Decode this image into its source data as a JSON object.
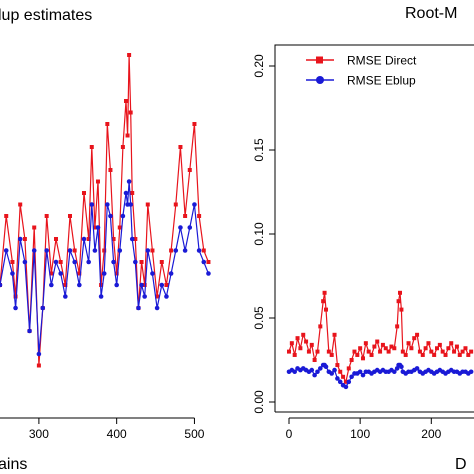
{
  "colors": {
    "direct": "#e8141c",
    "eblup": "#1a1ad6",
    "axis": "#000000",
    "background": "#ffffff"
  },
  "chart_data": [
    {
      "type": "line",
      "title": "lup estimates",
      "xlabel": "ains",
      "ylabel": "",
      "x_ticks": [
        300,
        400,
        500
      ],
      "xlim": [
        250,
        520
      ],
      "ylim": [
        0.0,
        0.3
      ],
      "series": [
        {
          "name": "Direct",
          "color": "#e8141c",
          "marker": "square",
          "x": [
            250,
            258,
            266,
            270,
            276,
            282,
            288,
            294,
            300,
            305,
            310,
            316,
            322,
            328,
            334,
            340,
            346,
            352,
            358,
            364,
            368,
            372,
            376,
            380,
            384,
            388,
            392,
            396,
            400,
            404,
            408,
            412,
            414,
            416,
            418,
            420,
            424,
            428,
            432,
            436,
            440,
            446,
            452,
            458,
            464,
            470,
            476,
            482,
            488,
            494,
            500,
            506,
            512,
            518
          ],
          "values": [
            0.1,
            0.16,
            0.12,
            0.09,
            0.17,
            0.14,
            0.06,
            0.15,
            0.03,
            0.08,
            0.16,
            0.11,
            0.14,
            0.12,
            0.1,
            0.16,
            0.13,
            0.11,
            0.18,
            0.14,
            0.22,
            0.15,
            0.19,
            0.1,
            0.13,
            0.24,
            0.2,
            0.14,
            0.11,
            0.15,
            0.22,
            0.26,
            0.23,
            0.3,
            0.25,
            0.18,
            0.14,
            0.08,
            0.12,
            0.1,
            0.17,
            0.13,
            0.09,
            0.12,
            0.1,
            0.13,
            0.17,
            0.22,
            0.16,
            0.2,
            0.24,
            0.16,
            0.13,
            0.12
          ]
        },
        {
          "name": "Eblup",
          "color": "#1a1ad6",
          "marker": "circle",
          "x": [
            250,
            258,
            266,
            270,
            276,
            282,
            288,
            294,
            300,
            305,
            310,
            316,
            322,
            328,
            334,
            340,
            346,
            352,
            358,
            364,
            368,
            372,
            376,
            380,
            384,
            388,
            392,
            396,
            400,
            404,
            408,
            412,
            414,
            416,
            418,
            420,
            424,
            428,
            432,
            436,
            440,
            446,
            452,
            458,
            464,
            470,
            476,
            482,
            488,
            494,
            500,
            506,
            512,
            518
          ],
          "values": [
            0.1,
            0.13,
            0.11,
            0.08,
            0.14,
            0.12,
            0.06,
            0.13,
            0.04,
            0.08,
            0.13,
            0.1,
            0.12,
            0.11,
            0.09,
            0.13,
            0.12,
            0.1,
            0.14,
            0.12,
            0.17,
            0.13,
            0.15,
            0.09,
            0.11,
            0.17,
            0.16,
            0.12,
            0.1,
            0.13,
            0.16,
            0.18,
            0.17,
            0.19,
            0.17,
            0.14,
            0.12,
            0.08,
            0.1,
            0.09,
            0.13,
            0.11,
            0.08,
            0.1,
            0.09,
            0.11,
            0.13,
            0.15,
            0.13,
            0.15,
            0.17,
            0.13,
            0.12,
            0.11
          ]
        }
      ]
    },
    {
      "type": "line",
      "title": "Root-M",
      "xlabel": "D",
      "ylabel": "",
      "x_ticks": [
        0,
        100,
        200
      ],
      "y_ticks": [
        "0.00",
        "0.05",
        "0.10",
        "0.15",
        "0.20"
      ],
      "xlim": [
        0,
        260
      ],
      "ylim": [
        0.0,
        0.2
      ],
      "legend_position": "top-left",
      "series": [
        {
          "name": "RMSE Direct",
          "color": "#e8141c",
          "marker": "square",
          "x": [
            0,
            4,
            8,
            12,
            16,
            20,
            24,
            28,
            32,
            36,
            40,
            44,
            48,
            50,
            52,
            56,
            60,
            64,
            68,
            72,
            76,
            80,
            84,
            88,
            92,
            96,
            100,
            104,
            108,
            112,
            116,
            120,
            124,
            128,
            132,
            136,
            140,
            144,
            148,
            152,
            154,
            156,
            158,
            160,
            164,
            168,
            172,
            176,
            180,
            184,
            188,
            192,
            196,
            200,
            204,
            208,
            212,
            216,
            220,
            224,
            228,
            232,
            236,
            240,
            244,
            248,
            252,
            256
          ],
          "values": [
            0.03,
            0.035,
            0.028,
            0.038,
            0.032,
            0.04,
            0.036,
            0.03,
            0.034,
            0.025,
            0.03,
            0.045,
            0.06,
            0.065,
            0.055,
            0.03,
            0.028,
            0.04,
            0.022,
            0.018,
            0.015,
            0.012,
            0.02,
            0.025,
            0.03,
            0.028,
            0.032,
            0.026,
            0.035,
            0.03,
            0.028,
            0.033,
            0.036,
            0.03,
            0.034,
            0.032,
            0.03,
            0.033,
            0.032,
            0.045,
            0.06,
            0.065,
            0.055,
            0.03,
            0.028,
            0.035,
            0.032,
            0.038,
            0.04,
            0.03,
            0.028,
            0.032,
            0.035,
            0.03,
            0.028,
            0.032,
            0.034,
            0.03,
            0.028,
            0.032,
            0.035,
            0.03,
            0.033,
            0.028,
            0.03,
            0.032,
            0.028,
            0.03
          ]
        },
        {
          "name": "RMSE Eblup",
          "color": "#1a1ad6",
          "marker": "circle",
          "x": [
            0,
            4,
            8,
            12,
            16,
            20,
            24,
            28,
            32,
            36,
            40,
            44,
            48,
            50,
            52,
            56,
            60,
            64,
            68,
            72,
            76,
            80,
            84,
            88,
            92,
            96,
            100,
            104,
            108,
            112,
            116,
            120,
            124,
            128,
            132,
            136,
            140,
            144,
            148,
            152,
            154,
            156,
            158,
            160,
            164,
            168,
            172,
            176,
            180,
            184,
            188,
            192,
            196,
            200,
            204,
            208,
            212,
            216,
            220,
            224,
            228,
            232,
            236,
            240,
            244,
            248,
            252,
            256
          ],
          "values": [
            0.018,
            0.019,
            0.018,
            0.02,
            0.019,
            0.02,
            0.019,
            0.018,
            0.019,
            0.016,
            0.018,
            0.02,
            0.022,
            0.022,
            0.021,
            0.018,
            0.017,
            0.019,
            0.014,
            0.012,
            0.01,
            0.009,
            0.012,
            0.015,
            0.017,
            0.017,
            0.018,
            0.016,
            0.018,
            0.018,
            0.017,
            0.018,
            0.019,
            0.018,
            0.019,
            0.018,
            0.018,
            0.019,
            0.018,
            0.02,
            0.022,
            0.022,
            0.021,
            0.018,
            0.017,
            0.018,
            0.018,
            0.019,
            0.02,
            0.018,
            0.017,
            0.018,
            0.019,
            0.018,
            0.017,
            0.018,
            0.019,
            0.018,
            0.017,
            0.018,
            0.019,
            0.018,
            0.018,
            0.017,
            0.018,
            0.018,
            0.017,
            0.018
          ]
        }
      ]
    }
  ]
}
